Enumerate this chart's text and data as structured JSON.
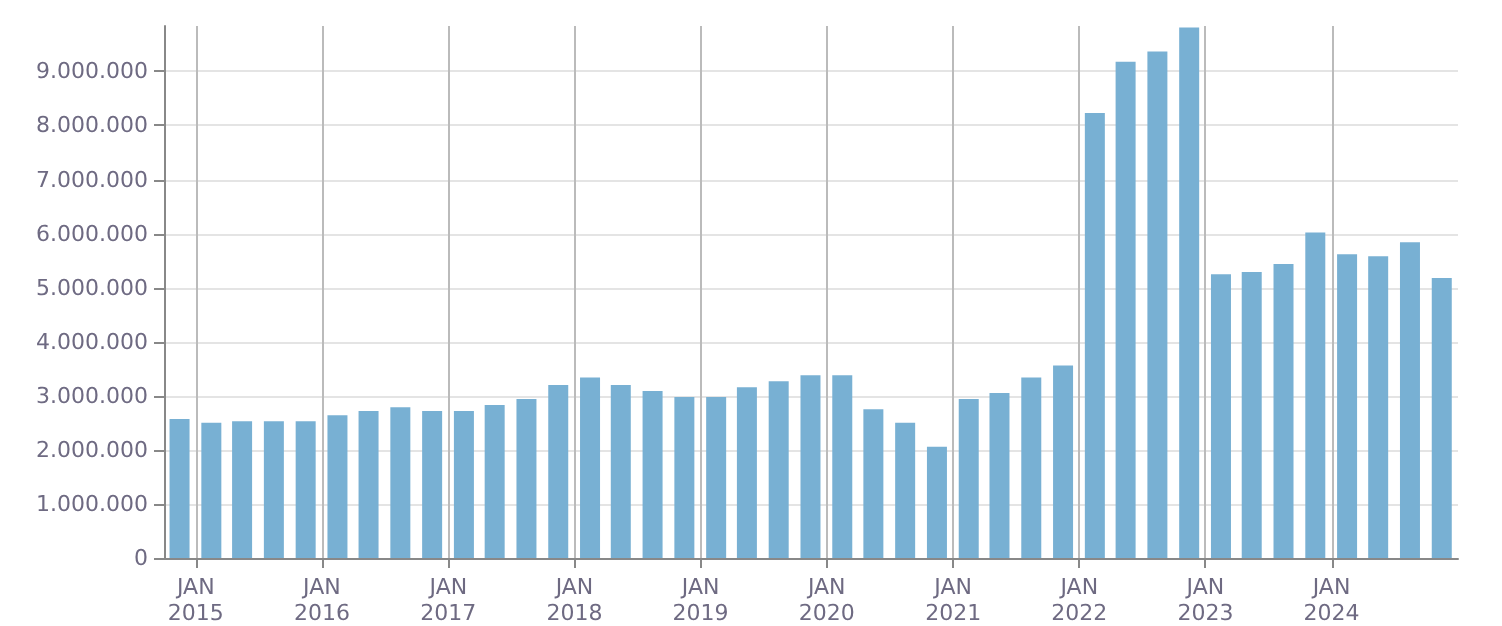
{
  "chart_data": {
    "type": "bar",
    "x": [
      "2014-11-15",
      "2015-02-15",
      "2015-05-15",
      "2015-08-15",
      "2015-11-15",
      "2016-02-15",
      "2016-05-15",
      "2016-08-15",
      "2016-11-15",
      "2017-02-15",
      "2017-05-15",
      "2017-08-15",
      "2017-11-15",
      "2018-02-15",
      "2018-05-15",
      "2018-08-15",
      "2018-11-15",
      "2019-02-15",
      "2019-05-15",
      "2019-08-15",
      "2019-11-15",
      "2020-02-15",
      "2020-05-15",
      "2020-08-15",
      "2020-11-15",
      "2021-02-15",
      "2021-05-15",
      "2021-08-15",
      "2021-11-15",
      "2022-02-15",
      "2022-05-15",
      "2022-08-15",
      "2022-11-15",
      "2023-02-15",
      "2023-05-15",
      "2023-08-15",
      "2023-11-15",
      "2024-02-15",
      "2024-05-15",
      "2024-08-15",
      "2024-11-15"
    ],
    "values": [
      2570000,
      2500000,
      2530000,
      2530000,
      2530000,
      2640000,
      2720000,
      2790000,
      2720000,
      2720000,
      2830000,
      2940000,
      3200000,
      3340000,
      3200000,
      3090000,
      2980000,
      2980000,
      3160000,
      3270000,
      3380000,
      3380000,
      2750000,
      2500000,
      2060000,
      2940000,
      3050000,
      3340000,
      3560000,
      8230000,
      9180000,
      9370000,
      9810000,
      5250000,
      5290000,
      5440000,
      6020000,
      5620000,
      5580000,
      5840000,
      5180000
    ],
    "color": "#78b0d3",
    "xlim": [
      "2014-10-01",
      "2025-01-01"
    ],
    "xticks": [
      {
        "value": "2015-01-01",
        "label": "JAN\n2015"
      },
      {
        "value": "2016-01-01",
        "label": "JAN\n2016"
      },
      {
        "value": "2017-01-01",
        "label": "JAN\n2017"
      },
      {
        "value": "2018-01-01",
        "label": "JAN\n2018"
      },
      {
        "value": "2019-01-01",
        "label": "JAN\n2019"
      },
      {
        "value": "2020-01-01",
        "label": "JAN\n2020"
      },
      {
        "value": "2021-01-01",
        "label": "JAN\n2021"
      },
      {
        "value": "2022-01-01",
        "label": "JAN\n2022"
      },
      {
        "value": "2023-01-01",
        "label": "JAN\n2023"
      },
      {
        "value": "2024-01-01",
        "label": "JAN\n2024"
      }
    ],
    "ylim": [
      0,
      9840000
    ],
    "yticks": [
      0,
      {
        "value": 1000000,
        "label": "1.000.000"
      },
      {
        "value": 2000000,
        "label": "2.000.000"
      },
      {
        "value": 3000000,
        "label": "3.000.000"
      },
      {
        "value": 4000000,
        "label": "4.000.000"
      },
      {
        "value": 5000000,
        "label": "5.000.000"
      },
      {
        "value": 6000000,
        "label": "6.000.000"
      },
      {
        "value": 7000000,
        "label": "7.000.000"
      },
      {
        "value": 8000000,
        "label": "8.000.000"
      },
      {
        "value": 9000000,
        "label": "9.000.000"
      }
    ],
    "grid": true
  }
}
